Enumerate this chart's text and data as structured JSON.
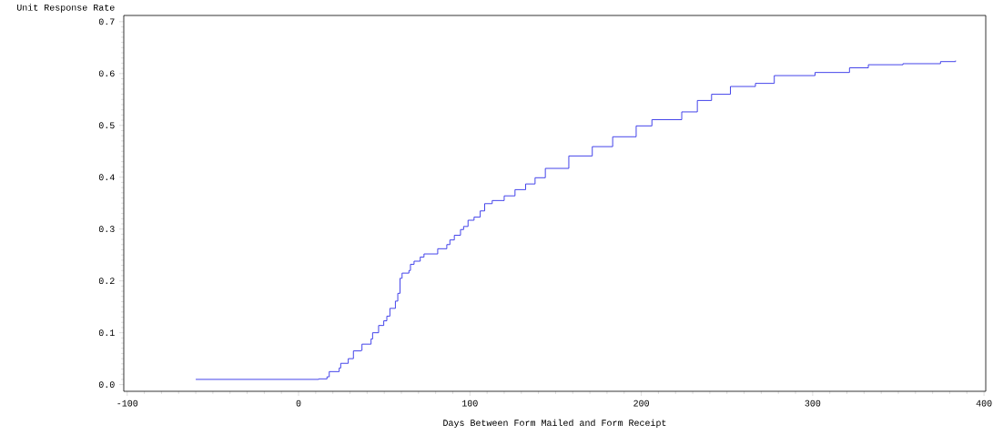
{
  "chart_data": {
    "type": "step",
    "xlabel": "Days Between Form Mailed and Form Receipt",
    "ylabel": "Unit Response Rate",
    "x": [
      -60,
      11.8,
      16.6,
      17.9,
      23.7,
      24.6,
      29,
      32,
      36.5,
      37,
      42.3,
      43.2,
      46.7,
      49.7,
      51.5,
      53.3,
      56.5,
      57.9,
      59.2,
      60.4,
      64.4,
      65.3,
      67.4,
      71,
      73.2,
      81.2,
      86.5,
      88.3,
      90.9,
      94.5,
      96.3,
      98.9,
      102.4,
      106,
      108.6,
      113,
      120,
      126.3,
      132.5,
      138,
      144,
      157.7,
      171.4,
      183.3,
      197,
      206.2,
      223.6,
      232.7,
      241,
      252,
      266.6,
      277.6,
      301.4,
      321.5,
      332.5,
      352.7,
      374.6,
      383.4
    ],
    "series": [
      {
        "color": "#3030e8",
        "values": [
          0.01,
          0.011,
          0.015,
          0.025,
          0.032,
          0.041,
          0.05,
          0.065,
          0.066,
          0.078,
          0.088,
          0.1,
          0.114,
          0.123,
          0.132,
          0.147,
          0.161,
          0.176,
          0.205,
          0.215,
          0.22,
          0.232,
          0.238,
          0.246,
          0.252,
          0.262,
          0.27,
          0.279,
          0.288,
          0.299,
          0.305,
          0.317,
          0.323,
          0.335,
          0.349,
          0.355,
          0.364,
          0.376,
          0.387,
          0.399,
          0.417,
          0.441,
          0.459,
          0.478,
          0.499,
          0.511,
          0.526,
          0.548,
          0.56,
          0.575,
          0.581,
          0.596,
          0.602,
          0.611,
          0.617,
          0.619,
          0.623,
          0.625
        ]
      }
    ],
    "xlim": [
      -102,
      401
    ],
    "ylim": [
      -0.013,
      0.712
    ],
    "xticks": [
      -100,
      0,
      100,
      200,
      300,
      400
    ],
    "yticks": [
      {
        "value": 0,
        "label": "0.0"
      },
      {
        "value": 0.1,
        "label": "0.1"
      },
      {
        "value": 0.2,
        "label": "0.2"
      },
      {
        "value": 0.3,
        "label": "0.3"
      },
      {
        "value": 0.4,
        "label": "0.4"
      },
      {
        "value": 0.5,
        "label": "0.5"
      },
      {
        "value": 0.6,
        "label": "0.6"
      },
      {
        "value": 0.7,
        "label": "0.7"
      }
    ],
    "grid": false,
    "marker": "none",
    "line_style": "solid"
  }
}
